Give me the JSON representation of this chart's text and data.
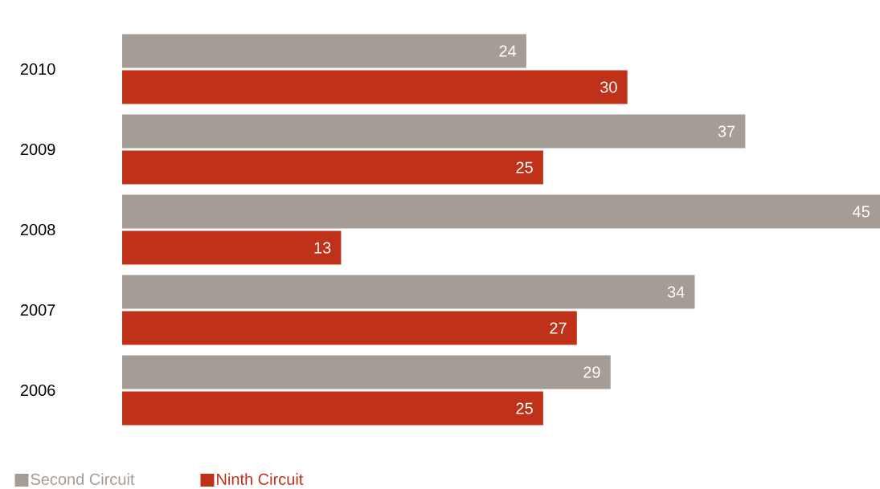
{
  "chart_data": {
    "type": "bar",
    "orientation": "horizontal",
    "categories": [
      "2010",
      "2009",
      "2008",
      "2007",
      "2006"
    ],
    "series": [
      {
        "name": "Second Circuit",
        "color": "#a59c95",
        "values": [
          24,
          37,
          45,
          34,
          29
        ]
      },
      {
        "name": "Ninth Circuit",
        "color": "#c0311a",
        "values": [
          30,
          25,
          13,
          27,
          25
        ]
      }
    ],
    "data_labels": true,
    "legend": "bottom"
  }
}
